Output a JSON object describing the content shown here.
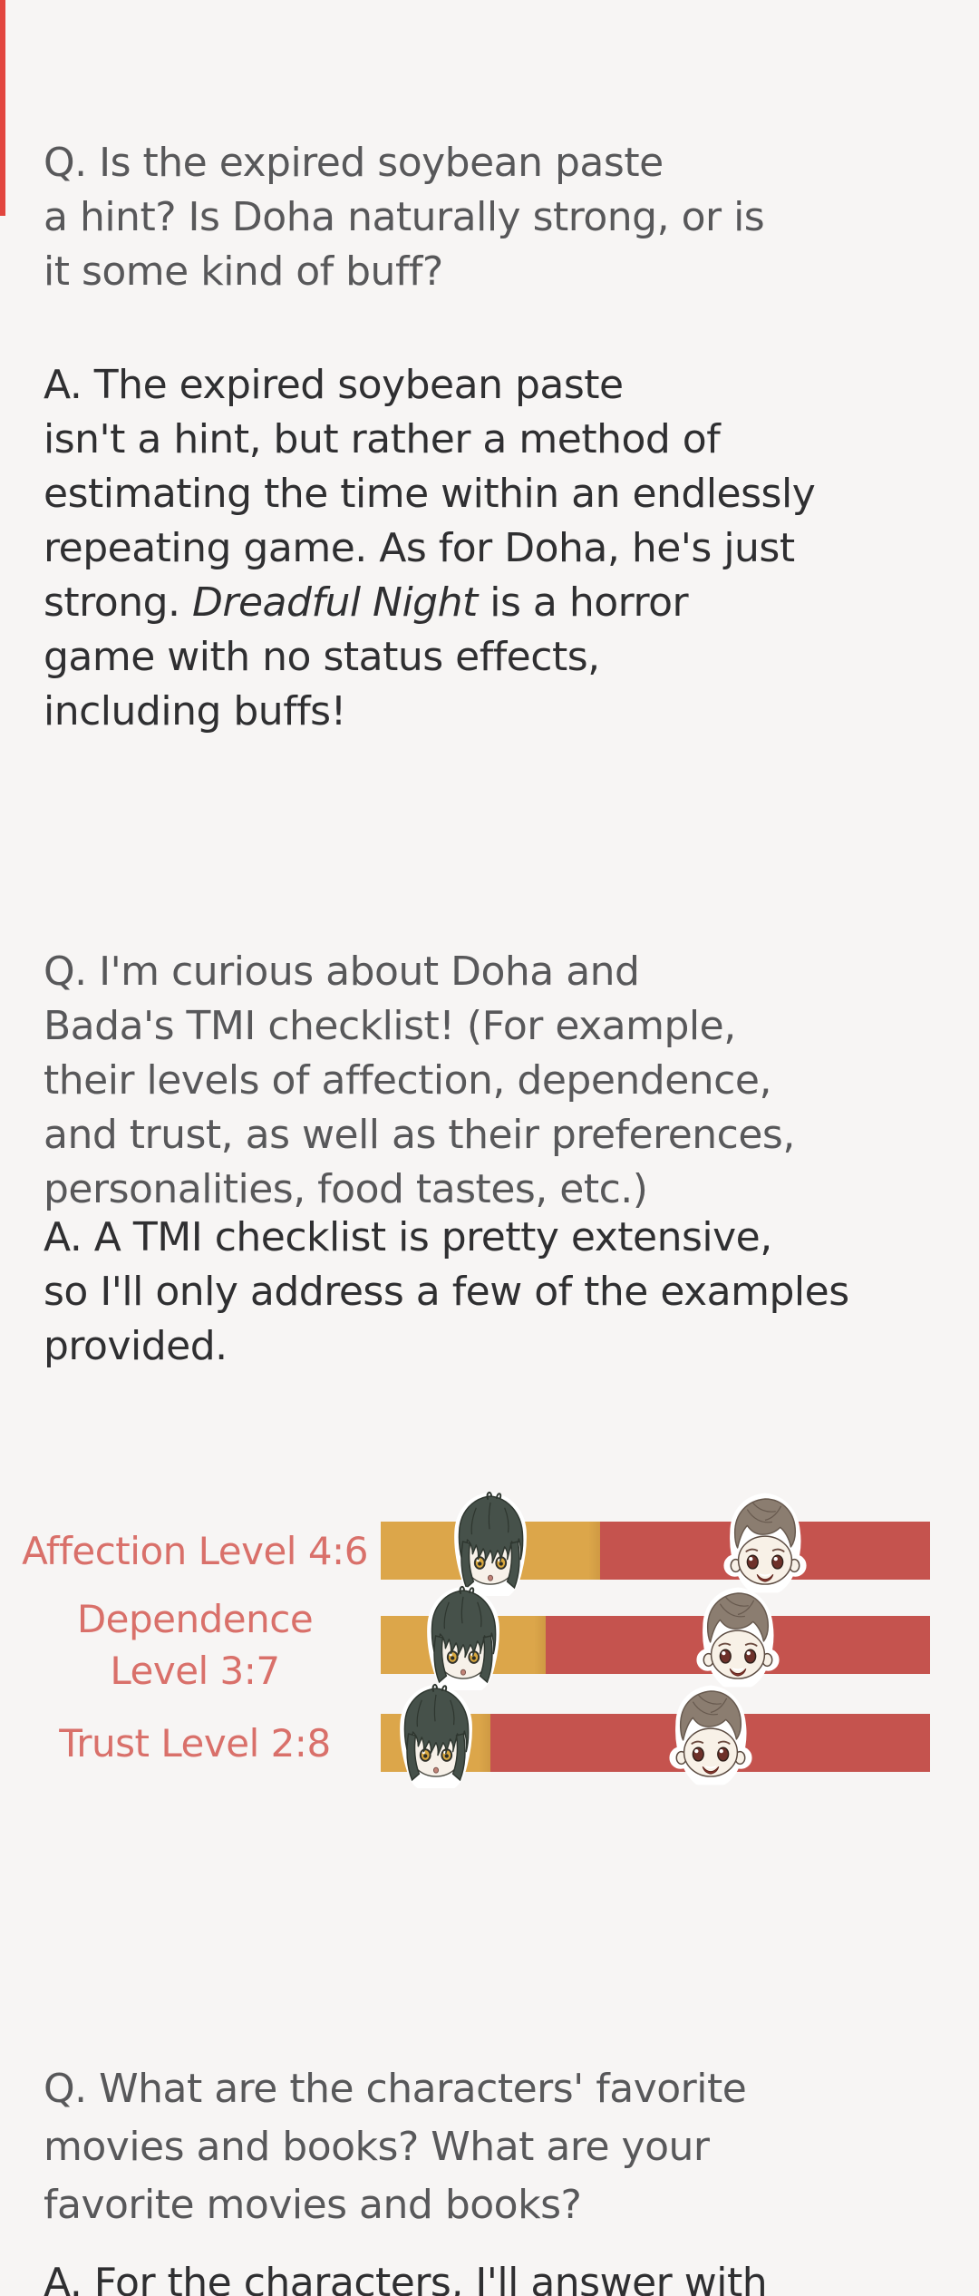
{
  "page": {
    "background_color": "#f7f5f4",
    "accent_strip_color": "#e2453e",
    "question_text_color": "#58585a",
    "answer_text_color": "#2f2f31"
  },
  "content": {
    "q1": {
      "lines": [
        "Q. Is the expired soybean paste",
        "a hint? Is Doha naturally strong, or is",
        "it some kind of buff?"
      ]
    },
    "a1": {
      "lines_before": [
        "A. The expired soybean paste",
        "isn't a hint, but rather a method of",
        "estimating the time within an endlessly",
        "repeating game. As for Doha, he's just"
      ],
      "italic_line": {
        "pre": "strong. ",
        "italic": "Dreadful Night",
        "post": " is a horror"
      },
      "lines_after": [
        "game with no status effects,",
        "including buffs!"
      ]
    },
    "q2": {
      "lines": [
        "Q. I'm curious about Doha and",
        "Bada's TMI checklist! (For example,",
        "their levels of affection, dependence,",
        "and trust, as well as their preferences,",
        "personalities, food tastes, etc.)"
      ]
    },
    "a2": {
      "lines": [
        "A. A TMI checklist is pretty extensive,",
        "so I'll only address a few of the examples",
        "provided."
      ]
    },
    "q3": {
      "lines": [
        "Q. What are the characters' favorite",
        "movies and books? What are your",
        "favorite movies and books?"
      ]
    },
    "a3": {
      "lines": [
        "A. For the characters, I'll answer with"
      ]
    }
  },
  "chart_data": {
    "type": "bar",
    "orientation": "horizontal-stacked",
    "title": "",
    "legend_position": "none",
    "grid": false,
    "categories": [
      "Affection Level",
      "Dependence Level",
      "Trust Level"
    ],
    "series": [
      {
        "name": "green-haired character (orange segment)",
        "values": [
          4,
          3,
          2
        ]
      },
      {
        "name": "brown-haired character (red segment)",
        "values": [
          6,
          7,
          8
        ]
      }
    ],
    "rows": [
      {
        "label": "Affection Level 4:6",
        "label_lines": [
          "Affection Level 4:6"
        ],
        "left_value": 4,
        "right_value": 6
      },
      {
        "label": "Dependence Level 3:7",
        "label_lines": [
          "Dependence",
          "Level 3:7"
        ],
        "left_value": 3,
        "right_value": 7
      },
      {
        "label": "Trust Level 2:8",
        "label_lines": [
          "Trust Level 2:8"
        ],
        "left_value": 2,
        "right_value": 8
      }
    ],
    "colors": {
      "left_segment": "#dca64a",
      "right_segment": "#c5534e",
      "label_text": "#d9706a"
    }
  }
}
